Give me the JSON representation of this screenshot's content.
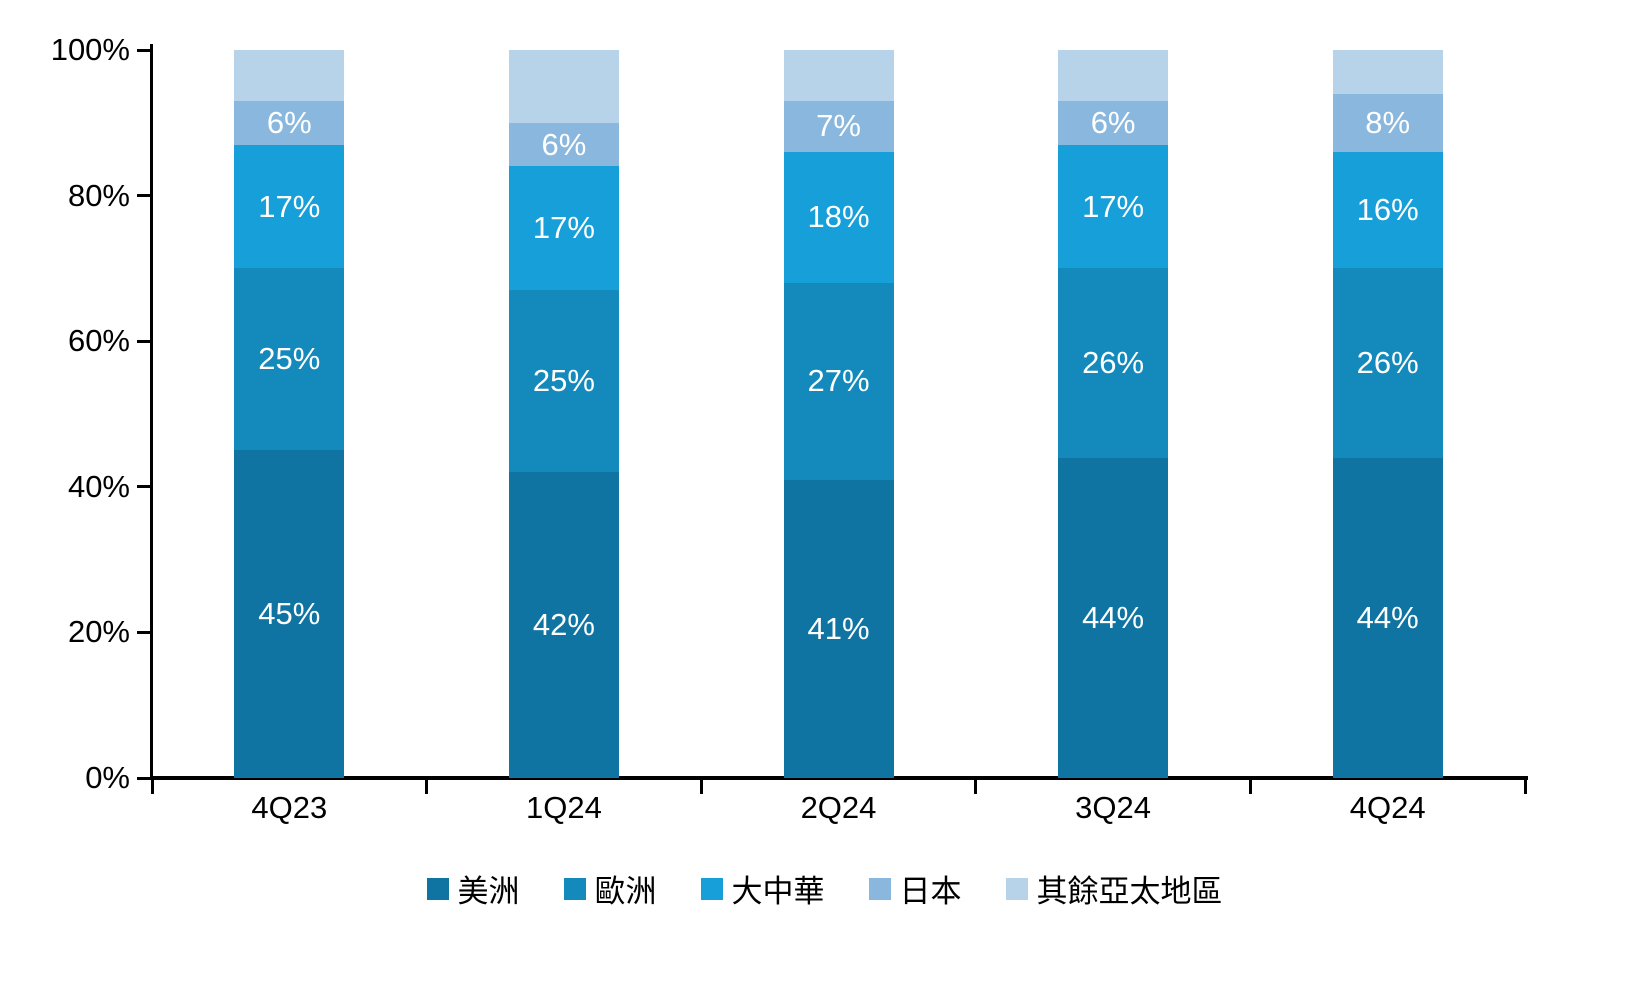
{
  "chart_data": {
    "type": "bar",
    "subtype": "stacked-100-percent",
    "title": "",
    "xlabel": "",
    "ylabel": "",
    "ylim": [
      0,
      100
    ],
    "grid": false,
    "legend_position": "bottom",
    "axis_color": "#000000",
    "segment_label_color": "#ffffff",
    "y_ticks": [
      {
        "value": 0,
        "label": "0%"
      },
      {
        "value": 20,
        "label": "20%"
      },
      {
        "value": 40,
        "label": "40%"
      },
      {
        "value": 60,
        "label": "60%"
      },
      {
        "value": 80,
        "label": "80%"
      },
      {
        "value": 100,
        "label": "100%"
      }
    ],
    "categories": [
      "4Q23",
      "1Q24",
      "2Q24",
      "3Q24",
      "4Q24"
    ],
    "series": [
      {
        "name": "美洲",
        "color": "#0F74A1",
        "values": [
          45,
          42,
          41,
          44,
          44
        ],
        "labels": [
          "45%",
          "42%",
          "41%",
          "44%",
          "44%"
        ]
      },
      {
        "name": "歐洲",
        "color": "#148ABC",
        "values": [
          25,
          25,
          27,
          26,
          26
        ],
        "labels": [
          "25%",
          "25%",
          "27%",
          "26%",
          "26%"
        ]
      },
      {
        "name": "大中華",
        "color": "#169FD8",
        "values": [
          17,
          17,
          18,
          17,
          16
        ],
        "labels": [
          "17%",
          "17%",
          "18%",
          "17%",
          "16%"
        ]
      },
      {
        "name": "日本",
        "color": "#89B7DD",
        "values": [
          6,
          6,
          7,
          6,
          8
        ],
        "labels": [
          "6%",
          "6%",
          "7%",
          "6%",
          "8%"
        ]
      },
      {
        "name": "其餘亞太地區",
        "color": "#B7D3EA",
        "values": [
          7,
          10,
          7,
          7,
          6
        ],
        "labels": [
          "",
          "",
          "",
          "",
          ""
        ]
      }
    ]
  }
}
